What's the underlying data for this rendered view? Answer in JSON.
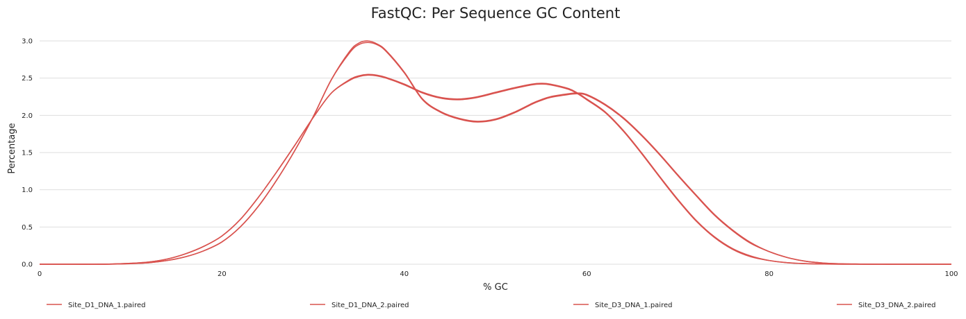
{
  "chart_data": {
    "type": "line",
    "title": "FastQC: Per Sequence GC Content",
    "xlabel": "% GC",
    "ylabel": "Percentage",
    "xlim": [
      0,
      100
    ],
    "ylim": [
      0,
      3.0
    ],
    "xticks": [
      0,
      20,
      40,
      60,
      80,
      100
    ],
    "yticks": [
      0.0,
      0.5,
      1.0,
      1.5,
      2.0,
      2.5,
      3.0
    ],
    "grid": "horizontal",
    "legend_position": "bottom",
    "colors": {
      "series": "#d9534f",
      "grid": "#dedede"
    },
    "x": [
      0,
      2,
      4,
      6,
      8,
      10,
      12,
      14,
      16,
      18,
      20,
      22,
      24,
      26,
      28,
      30,
      32,
      34,
      35,
      36,
      37,
      38,
      40,
      42,
      44,
      46,
      48,
      50,
      52,
      54,
      55,
      56,
      58,
      59,
      60,
      62,
      64,
      66,
      68,
      70,
      72,
      74,
      76,
      78,
      80,
      82,
      84,
      86,
      88,
      90,
      92,
      94,
      96,
      98,
      100
    ],
    "series": [
      {
        "name": "Site_D1_DNA_1.paired",
        "values": [
          0,
          0,
          0,
          0,
          0.002,
          0.008,
          0.02,
          0.05,
          0.1,
          0.18,
          0.3,
          0.5,
          0.78,
          1.13,
          1.53,
          1.98,
          2.48,
          2.86,
          2.97,
          3.0,
          2.96,
          2.87,
          2.58,
          2.22,
          2.05,
          1.96,
          1.92,
          1.95,
          2.04,
          2.16,
          2.21,
          2.25,
          2.29,
          2.3,
          2.28,
          2.15,
          1.97,
          1.74,
          1.48,
          1.2,
          0.93,
          0.67,
          0.46,
          0.29,
          0.17,
          0.09,
          0.04,
          0.015,
          0.005,
          0.002,
          0,
          0,
          0,
          0,
          0
        ]
      },
      {
        "name": "Site_D1_DNA_2.paired",
        "values": [
          0,
          0,
          0,
          0,
          0.002,
          0.008,
          0.02,
          0.05,
          0.1,
          0.18,
          0.3,
          0.5,
          0.78,
          1.13,
          1.53,
          1.98,
          2.48,
          2.84,
          2.95,
          2.98,
          2.95,
          2.86,
          2.57,
          2.21,
          2.04,
          1.95,
          1.91,
          1.94,
          2.03,
          2.15,
          2.2,
          2.24,
          2.28,
          2.29,
          2.27,
          2.14,
          1.96,
          1.73,
          1.47,
          1.19,
          0.92,
          0.66,
          0.45,
          0.28,
          0.17,
          0.09,
          0.04,
          0.015,
          0.005,
          0.002,
          0,
          0,
          0,
          0,
          0
        ]
      },
      {
        "name": "Site_D3_DNA_1.paired",
        "values": [
          0,
          0,
          0,
          0,
          0.003,
          0.012,
          0.03,
          0.07,
          0.14,
          0.24,
          0.38,
          0.6,
          0.9,
          1.24,
          1.6,
          1.97,
          2.3,
          2.48,
          2.53,
          2.55,
          2.54,
          2.51,
          2.42,
          2.31,
          2.24,
          2.22,
          2.25,
          2.31,
          2.37,
          2.42,
          2.43,
          2.42,
          2.36,
          2.3,
          2.22,
          2.05,
          1.8,
          1.5,
          1.18,
          0.87,
          0.59,
          0.37,
          0.21,
          0.11,
          0.05,
          0.02,
          0.008,
          0.003,
          0.001,
          0,
          0,
          0,
          0,
          0,
          0
        ]
      },
      {
        "name": "Site_D3_DNA_2.paired",
        "values": [
          0,
          0,
          0,
          0,
          0.003,
          0.012,
          0.03,
          0.07,
          0.14,
          0.24,
          0.38,
          0.6,
          0.9,
          1.24,
          1.6,
          1.97,
          2.3,
          2.47,
          2.52,
          2.54,
          2.53,
          2.5,
          2.41,
          2.3,
          2.23,
          2.21,
          2.24,
          2.3,
          2.36,
          2.41,
          2.42,
          2.41,
          2.35,
          2.29,
          2.21,
          2.04,
          1.79,
          1.49,
          1.17,
          0.86,
          0.58,
          0.36,
          0.2,
          0.1,
          0.05,
          0.02,
          0.008,
          0.003,
          0.001,
          0,
          0,
          0,
          0,
          0,
          0
        ]
      }
    ]
  }
}
